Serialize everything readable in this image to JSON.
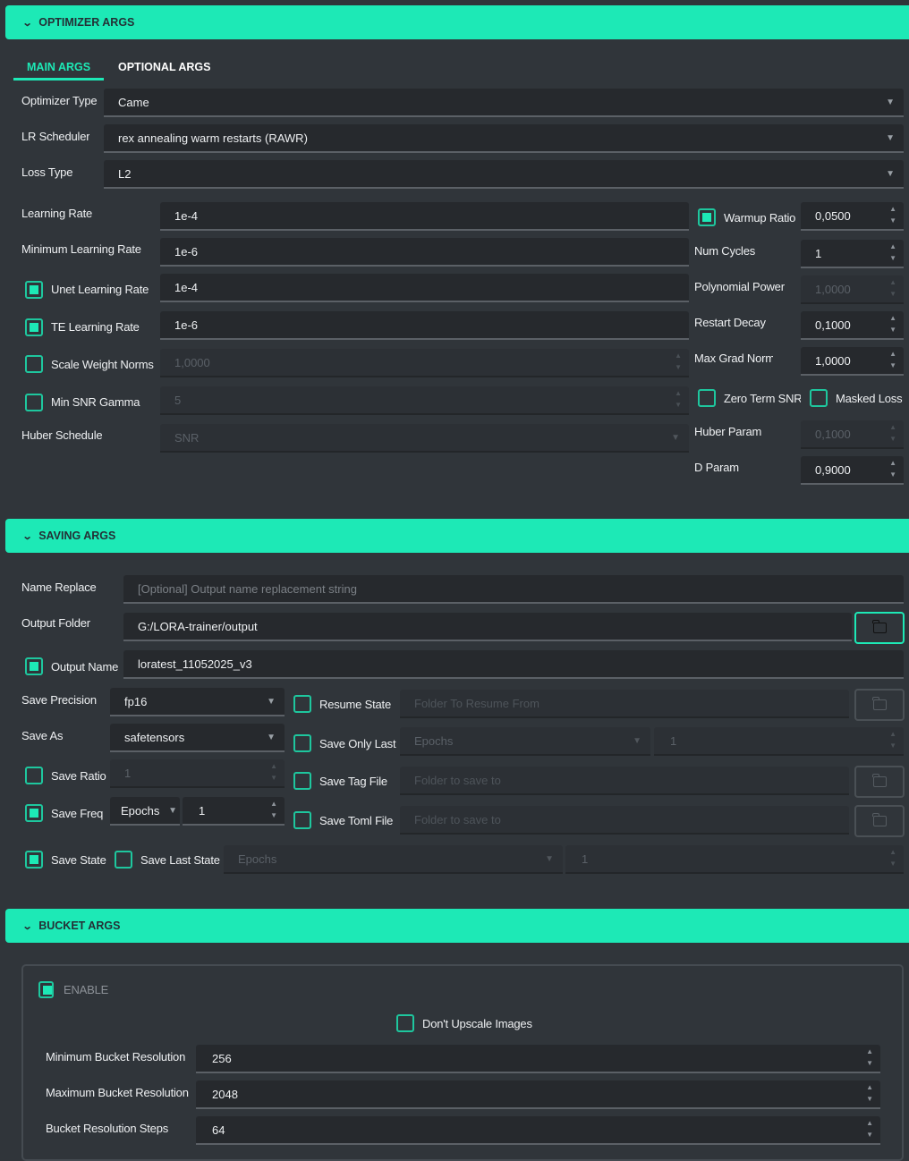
{
  "colors": {
    "accent": "#1de9b6",
    "background": "#30353a",
    "input": "#26292d"
  },
  "optimizer": {
    "title": "OPTIMIZER ARGS",
    "tabs": [
      "MAIN ARGS",
      "OPTIONAL ARGS"
    ],
    "optimizer_type": {
      "label": "Optimizer Type",
      "value": "Came"
    },
    "lr_scheduler": {
      "label": "LR Scheduler",
      "value": "rex annealing warm restarts (RAWR)"
    },
    "loss_type": {
      "label": "Loss Type",
      "value": "L2"
    },
    "learning_rate": {
      "label": "Learning Rate",
      "value": "1e-4"
    },
    "min_lr": {
      "label": "Minimum Learning Rate",
      "value": "1e-6"
    },
    "unet_lr": {
      "label": "Unet Learning Rate",
      "value": "1e-4",
      "checked": true
    },
    "te_lr": {
      "label": "TE Learning Rate",
      "value": "1e-6",
      "checked": true
    },
    "scale_weight_norms": {
      "label": "Scale Weight Norms",
      "value": "1,0000",
      "checked": false
    },
    "min_snr_gamma": {
      "label": "Min SNR Gamma",
      "value": "5",
      "checked": false
    },
    "huber_schedule": {
      "label": "Huber Schedule",
      "value": "SNR"
    },
    "warmup_ratio": {
      "label": "Warmup Ratio",
      "value": "0,0500",
      "checked": true
    },
    "num_cycles": {
      "label": "Num Cycles",
      "value": "1"
    },
    "polynomial_power": {
      "label": "Polynomial Power",
      "value": "1,0000"
    },
    "restart_decay": {
      "label": "Restart Decay",
      "value": "0,1000"
    },
    "max_grad_norm": {
      "label": "Max Grad Norm",
      "value": "1,0000"
    },
    "zero_term_snr": {
      "label": "Zero Term SNR",
      "checked": false
    },
    "masked_loss": {
      "label": "Masked Loss",
      "checked": false
    },
    "huber_param": {
      "label": "Huber Param",
      "value": "0,1000"
    },
    "d_param": {
      "label": "D Param",
      "value": "0,9000"
    }
  },
  "saving": {
    "title": "SAVING ARGS",
    "name_replace": {
      "label": "Name Replace",
      "placeholder": "[Optional] Output name replacement string"
    },
    "output_folder": {
      "label": "Output Folder",
      "value": "G:/LORA-trainer/output"
    },
    "output_name": {
      "label": "Output Name",
      "value": "loratest_11052025_v3",
      "checked": true
    },
    "save_precision": {
      "label": "Save Precision",
      "value": "fp16"
    },
    "save_as": {
      "label": "Save As",
      "value": "safetensors"
    },
    "save_ratio": {
      "label": "Save Ratio",
      "value": "1",
      "checked": false
    },
    "save_freq": {
      "label": "Save Freq",
      "unit": "Epochs",
      "value": "1",
      "checked": true
    },
    "resume_state": {
      "label": "Resume State",
      "placeholder": "Folder To Resume From",
      "checked": false
    },
    "save_only_last": {
      "label": "Save Only Last",
      "unit": "Epochs",
      "value": "1",
      "checked": false
    },
    "save_tag_file": {
      "label": "Save Tag File",
      "placeholder": "Folder to save to",
      "checked": false
    },
    "save_toml_file": {
      "label": "Save Toml File",
      "placeholder": "Folder to save to",
      "checked": false
    },
    "save_state": {
      "label": "Save State",
      "checked": true
    },
    "save_last_state": {
      "label": "Save Last State",
      "unit": "Epochs",
      "value": "1",
      "checked": false
    }
  },
  "bucket": {
    "title": "BUCKET ARGS",
    "enable": {
      "label": "ENABLE",
      "checked": true
    },
    "dont_upscale": {
      "label": "Don't Upscale Images",
      "checked": false
    },
    "min_res": {
      "label": "Minimum Bucket Resolution",
      "value": "256"
    },
    "max_res": {
      "label": "Maximum Bucket Resolution",
      "value": "2048"
    },
    "steps": {
      "label": "Bucket Resolution Steps",
      "value": "64"
    }
  }
}
